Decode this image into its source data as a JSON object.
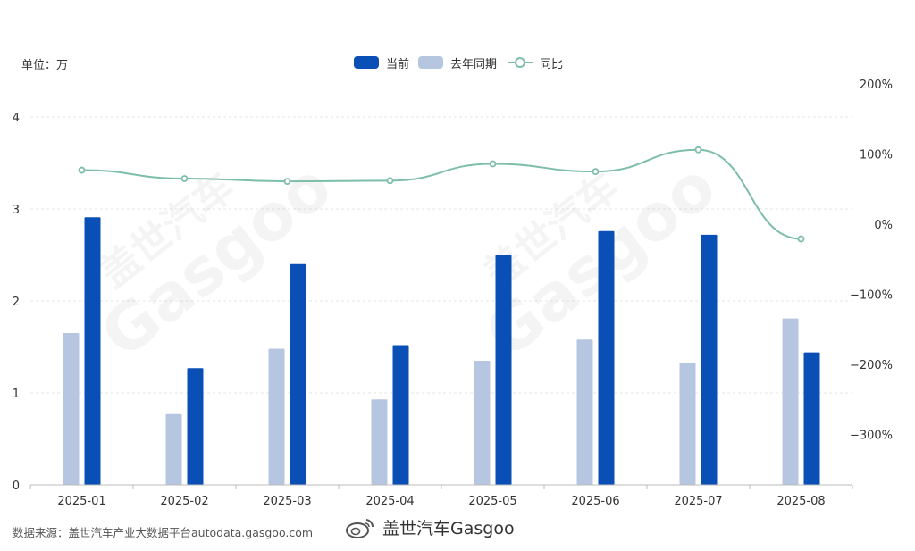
{
  "unit_label": "单位：万",
  "legend": {
    "current": "当前",
    "last_year": "去年同期",
    "yoy": "同比"
  },
  "colors": {
    "current": "#0a4fb5",
    "last_year": "#b7c6e0",
    "yoy": "#7dbfa6",
    "grid": "#e6e6e6",
    "axis": "#bbbbbb",
    "tick_text": "#333333"
  },
  "footer": {
    "source": "数据来源：盖世汽车产业大数据平台autodata.gasgoo.com",
    "brand": "盖世汽车Gasgoo"
  },
  "watermark": {
    "text_cn": "盖世汽车",
    "text_en": "Gasgoo"
  },
  "chart_data": {
    "type": "bar",
    "categories": [
      "2025-01",
      "2025-02",
      "2025-03",
      "2025-04",
      "2025-05",
      "2025-06",
      "2025-07",
      "2025-08"
    ],
    "series": [
      {
        "name": "去年同期",
        "type": "bar",
        "axis": "left",
        "values": [
          1.65,
          0.77,
          1.48,
          0.93,
          1.35,
          1.58,
          1.33,
          1.81
        ]
      },
      {
        "name": "当前",
        "type": "bar",
        "axis": "left",
        "values": [
          2.91,
          1.27,
          2.4,
          1.52,
          2.5,
          2.76,
          2.72,
          1.44
        ]
      },
      {
        "name": "同比",
        "type": "line",
        "axis": "right",
        "values": [
          77,
          65,
          61,
          62,
          86,
          75,
          106,
          -21
        ]
      }
    ],
    "y_left": {
      "min": 0,
      "max": 4,
      "ticks": [
        0,
        1,
        2,
        3,
        4
      ]
    },
    "y_right": {
      "min": -375,
      "max": 200,
      "ticks": [
        "200%",
        "100%",
        "0%",
        "−100%",
        "−200%",
        "−300%"
      ],
      "tick_values": [
        200,
        100,
        0,
        -100,
        -200,
        -300
      ]
    },
    "grid": true,
    "legend_position": "top-center"
  }
}
